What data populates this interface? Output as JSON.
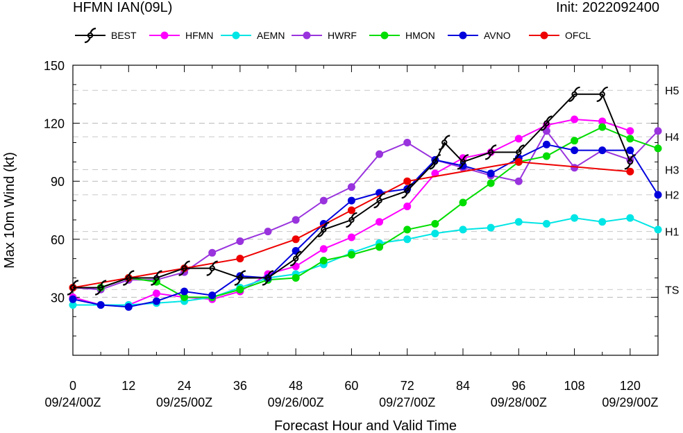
{
  "header": {
    "title": "HFMN IAN(09L)",
    "init": "Init: 2022092400"
  },
  "chart_data": {
    "type": "line",
    "xlabel": "Forecast Hour and Valid Time",
    "ylabel": "Max 10m Wind (kt)",
    "xlim": [
      0,
      126
    ],
    "ylim": [
      0,
      150
    ],
    "x_ticks": [
      0,
      12,
      24,
      36,
      48,
      60,
      72,
      84,
      96,
      108,
      120
    ],
    "y_ticks": [
      30,
      60,
      90,
      120,
      150
    ],
    "date_labels": [
      {
        "x": 0,
        "label": "09/24/00Z"
      },
      {
        "x": 24,
        "label": "09/25/00Z"
      },
      {
        "x": 48,
        "label": "09/26/00Z"
      },
      {
        "x": 72,
        "label": "09/27/00Z"
      },
      {
        "x": 96,
        "label": "09/28/00Z"
      },
      {
        "x": 120,
        "label": "09/29/00Z"
      }
    ],
    "category_lines": [
      {
        "label": "TS",
        "value": 34
      },
      {
        "label": "H1",
        "value": 64
      },
      {
        "label": "H2",
        "value": 83
      },
      {
        "label": "H3",
        "value": 96
      },
      {
        "label": "H4",
        "value": 113
      },
      {
        "label": "H5",
        "value": 137
      }
    ],
    "grid": "dashed horizontal",
    "legend": "top",
    "series": [
      {
        "name": "BEST",
        "color": "#000000",
        "marker": "hurricane",
        "x": [
          0,
          6,
          12,
          18,
          24,
          30,
          36,
          42,
          48,
          54,
          60,
          66,
          72,
          78,
          80,
          84,
          90,
          96,
          102,
          108,
          114,
          120
        ],
        "y": [
          35,
          35,
          40,
          40,
          45,
          45,
          40,
          40,
          50,
          65,
          70,
          80,
          85,
          100,
          110,
          100,
          105,
          105,
          120,
          135,
          135,
          100
        ]
      },
      {
        "name": "HFMN",
        "color": "#ff00ff",
        "marker": "circle",
        "x": [
          0,
          6,
          12,
          18,
          24,
          30,
          36,
          42,
          48,
          54,
          60,
          66,
          72,
          78,
          84,
          90,
          96,
          102,
          108,
          114,
          120
        ],
        "y": [
          30,
          26,
          26,
          32,
          30,
          29,
          33,
          42,
          46,
          55,
          61,
          69,
          77,
          94,
          102,
          105,
          112,
          119,
          122,
          121,
          116
        ]
      },
      {
        "name": "AEMN",
        "color": "#00e5e5",
        "marker": "circle",
        "x": [
          0,
          6,
          12,
          18,
          24,
          30,
          36,
          42,
          48,
          54,
          60,
          66,
          72,
          78,
          84,
          90,
          96,
          102,
          108,
          114,
          120,
          126
        ],
        "y": [
          26,
          26,
          26,
          27,
          28,
          30,
          35,
          40,
          42,
          47,
          53,
          58,
          60,
          63,
          65,
          66,
          69,
          68,
          71,
          69,
          71,
          65
        ]
      },
      {
        "name": "HWRF",
        "color": "#9933dd",
        "marker": "circle",
        "x": [
          0,
          6,
          12,
          18,
          24,
          30,
          36,
          42,
          48,
          54,
          60,
          66,
          72,
          78,
          84,
          90,
          96,
          102,
          108,
          114,
          120,
          126
        ],
        "y": [
          35,
          34,
          39,
          39,
          43,
          53,
          59,
          64,
          70,
          80,
          87,
          104,
          110,
          101,
          97,
          93,
          90,
          116,
          97,
          106,
          101,
          116
        ]
      },
      {
        "name": "HMON",
        "color": "#00dd00",
        "marker": "circle",
        "x": [
          0,
          6,
          12,
          18,
          24,
          30,
          36,
          42,
          48,
          54,
          60,
          66,
          72,
          78,
          84,
          90,
          96,
          102,
          108,
          114,
          120,
          126
        ],
        "y": [
          35,
          35,
          40,
          38,
          30,
          30,
          34,
          39,
          40,
          49,
          52,
          56,
          65,
          68,
          79,
          89,
          100,
          103,
          111,
          118,
          112,
          107
        ]
      },
      {
        "name": "AVNO",
        "color": "#0000dd",
        "marker": "circle",
        "x": [
          0,
          6,
          12,
          18,
          24,
          30,
          36,
          42,
          48,
          54,
          60,
          66,
          72,
          78,
          84,
          90,
          96,
          102,
          108,
          114,
          120,
          126
        ],
        "y": [
          29,
          26,
          25,
          28,
          33,
          31,
          41,
          40,
          54,
          68,
          80,
          84,
          86,
          101,
          98,
          94,
          102,
          109,
          106,
          106,
          106,
          83
        ]
      },
      {
        "name": "OFCL",
        "color": "#ee0000",
        "marker": "circle",
        "x": [
          0,
          12,
          24,
          36,
          48,
          60,
          72,
          96,
          120
        ],
        "y": [
          35,
          40,
          45,
          50,
          60,
          75,
          90,
          100,
          95
        ]
      }
    ]
  }
}
